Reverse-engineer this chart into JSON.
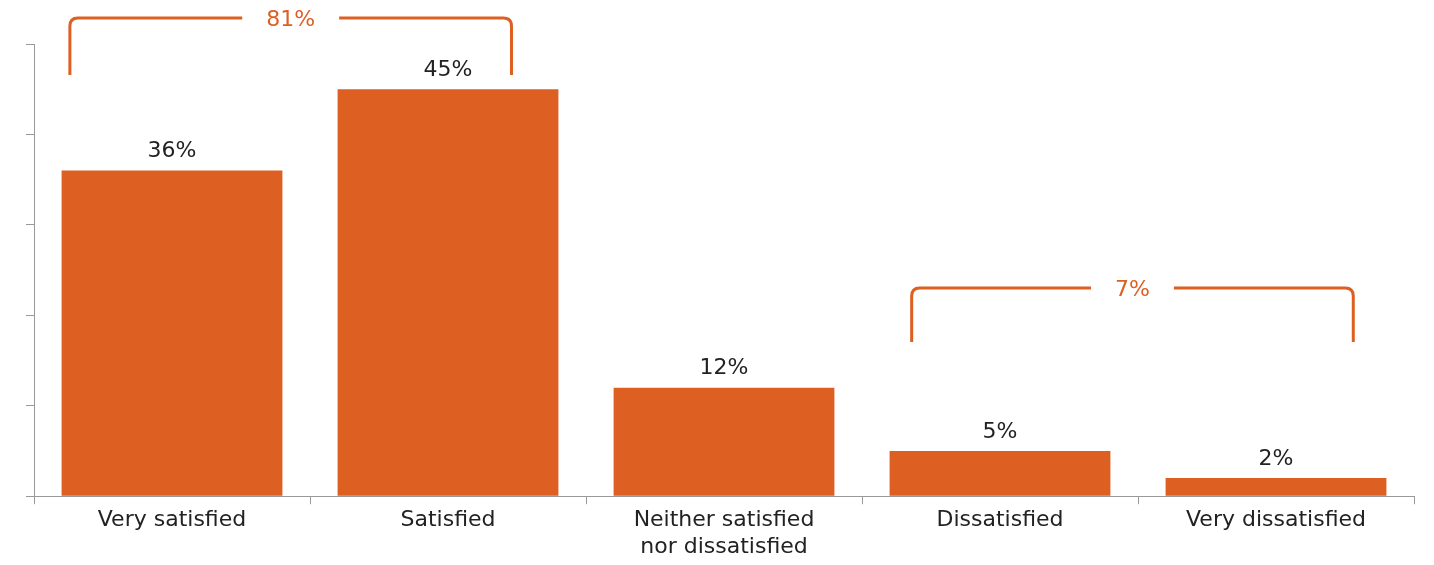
{
  "chart_data": {
    "type": "bar",
    "categories": [
      "Very satisfied",
      "Satisfied",
      "Neither satisfied nor dissatisfied",
      "Dissatisfied",
      "Very dissatisfied"
    ],
    "values": [
      36,
      45,
      12,
      5,
      2
    ],
    "value_labels": [
      "36%",
      "45%",
      "12%",
      "5%",
      "2%"
    ],
    "color": "#dd5f22",
    "ylim": [
      0,
      50
    ],
    "yticks": [
      {
        "value": 0,
        "label": null
      },
      {
        "value": 10,
        "label": null
      },
      {
        "value": 20,
        "label": null
      },
      {
        "value": 30,
        "label": null
      },
      {
        "value": 40,
        "label": null
      },
      {
        "value": 50,
        "label": null
      }
    ],
    "tick_labels": "x",
    "annotations": [
      "81%",
      "7%"
    ],
    "legend": false
  }
}
